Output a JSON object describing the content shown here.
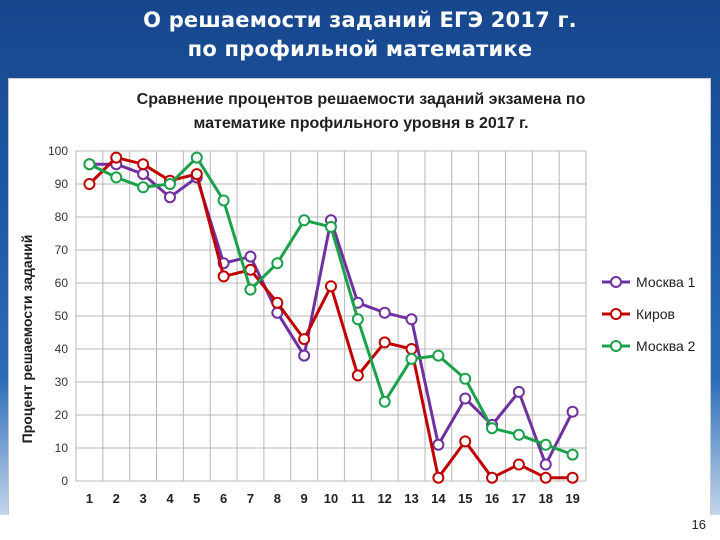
{
  "slide": {
    "title_line1": "О решаемости заданий ЕГЭ 2017 г.",
    "title_line2": "по профильной математике",
    "page_number": "16"
  },
  "chart_data": {
    "type": "line",
    "title_line1": "Сравнение процентов решаемости заданий экзамена по",
    "title_line2": "математике профильного уровня в 2017 г.",
    "xlabel": "",
    "ylabel": "Процент решаемости заданий",
    "x": [
      1,
      2,
      3,
      4,
      5,
      6,
      7,
      8,
      9,
      10,
      11,
      12,
      13,
      14,
      15,
      16,
      17,
      18,
      19
    ],
    "ylim": [
      0,
      100
    ],
    "yticks": [
      0,
      10,
      20,
      30,
      40,
      50,
      60,
      70,
      80,
      90,
      100
    ],
    "grid": true,
    "legend_position": "right",
    "series": [
      {
        "name": "Москва 1",
        "color": "#7030a0",
        "values": [
          96,
          96,
          93,
          86,
          92,
          66,
          68,
          51,
          38,
          79,
          54,
          51,
          49,
          11,
          25,
          17,
          27,
          5,
          21
        ]
      },
      {
        "name": "Киров",
        "color": "#c00000",
        "values": [
          90,
          98,
          96,
          91,
          93,
          62,
          64,
          54,
          43,
          59,
          32,
          42,
          40,
          1,
          12,
          1,
          5,
          1,
          1
        ]
      },
      {
        "name": "Москва 2",
        "color": "#1aa14a",
        "values": [
          96,
          92,
          89,
          90,
          98,
          85,
          58,
          66,
          79,
          77,
          49,
          24,
          37,
          38,
          31,
          16,
          14,
          11,
          8
        ]
      }
    ]
  }
}
